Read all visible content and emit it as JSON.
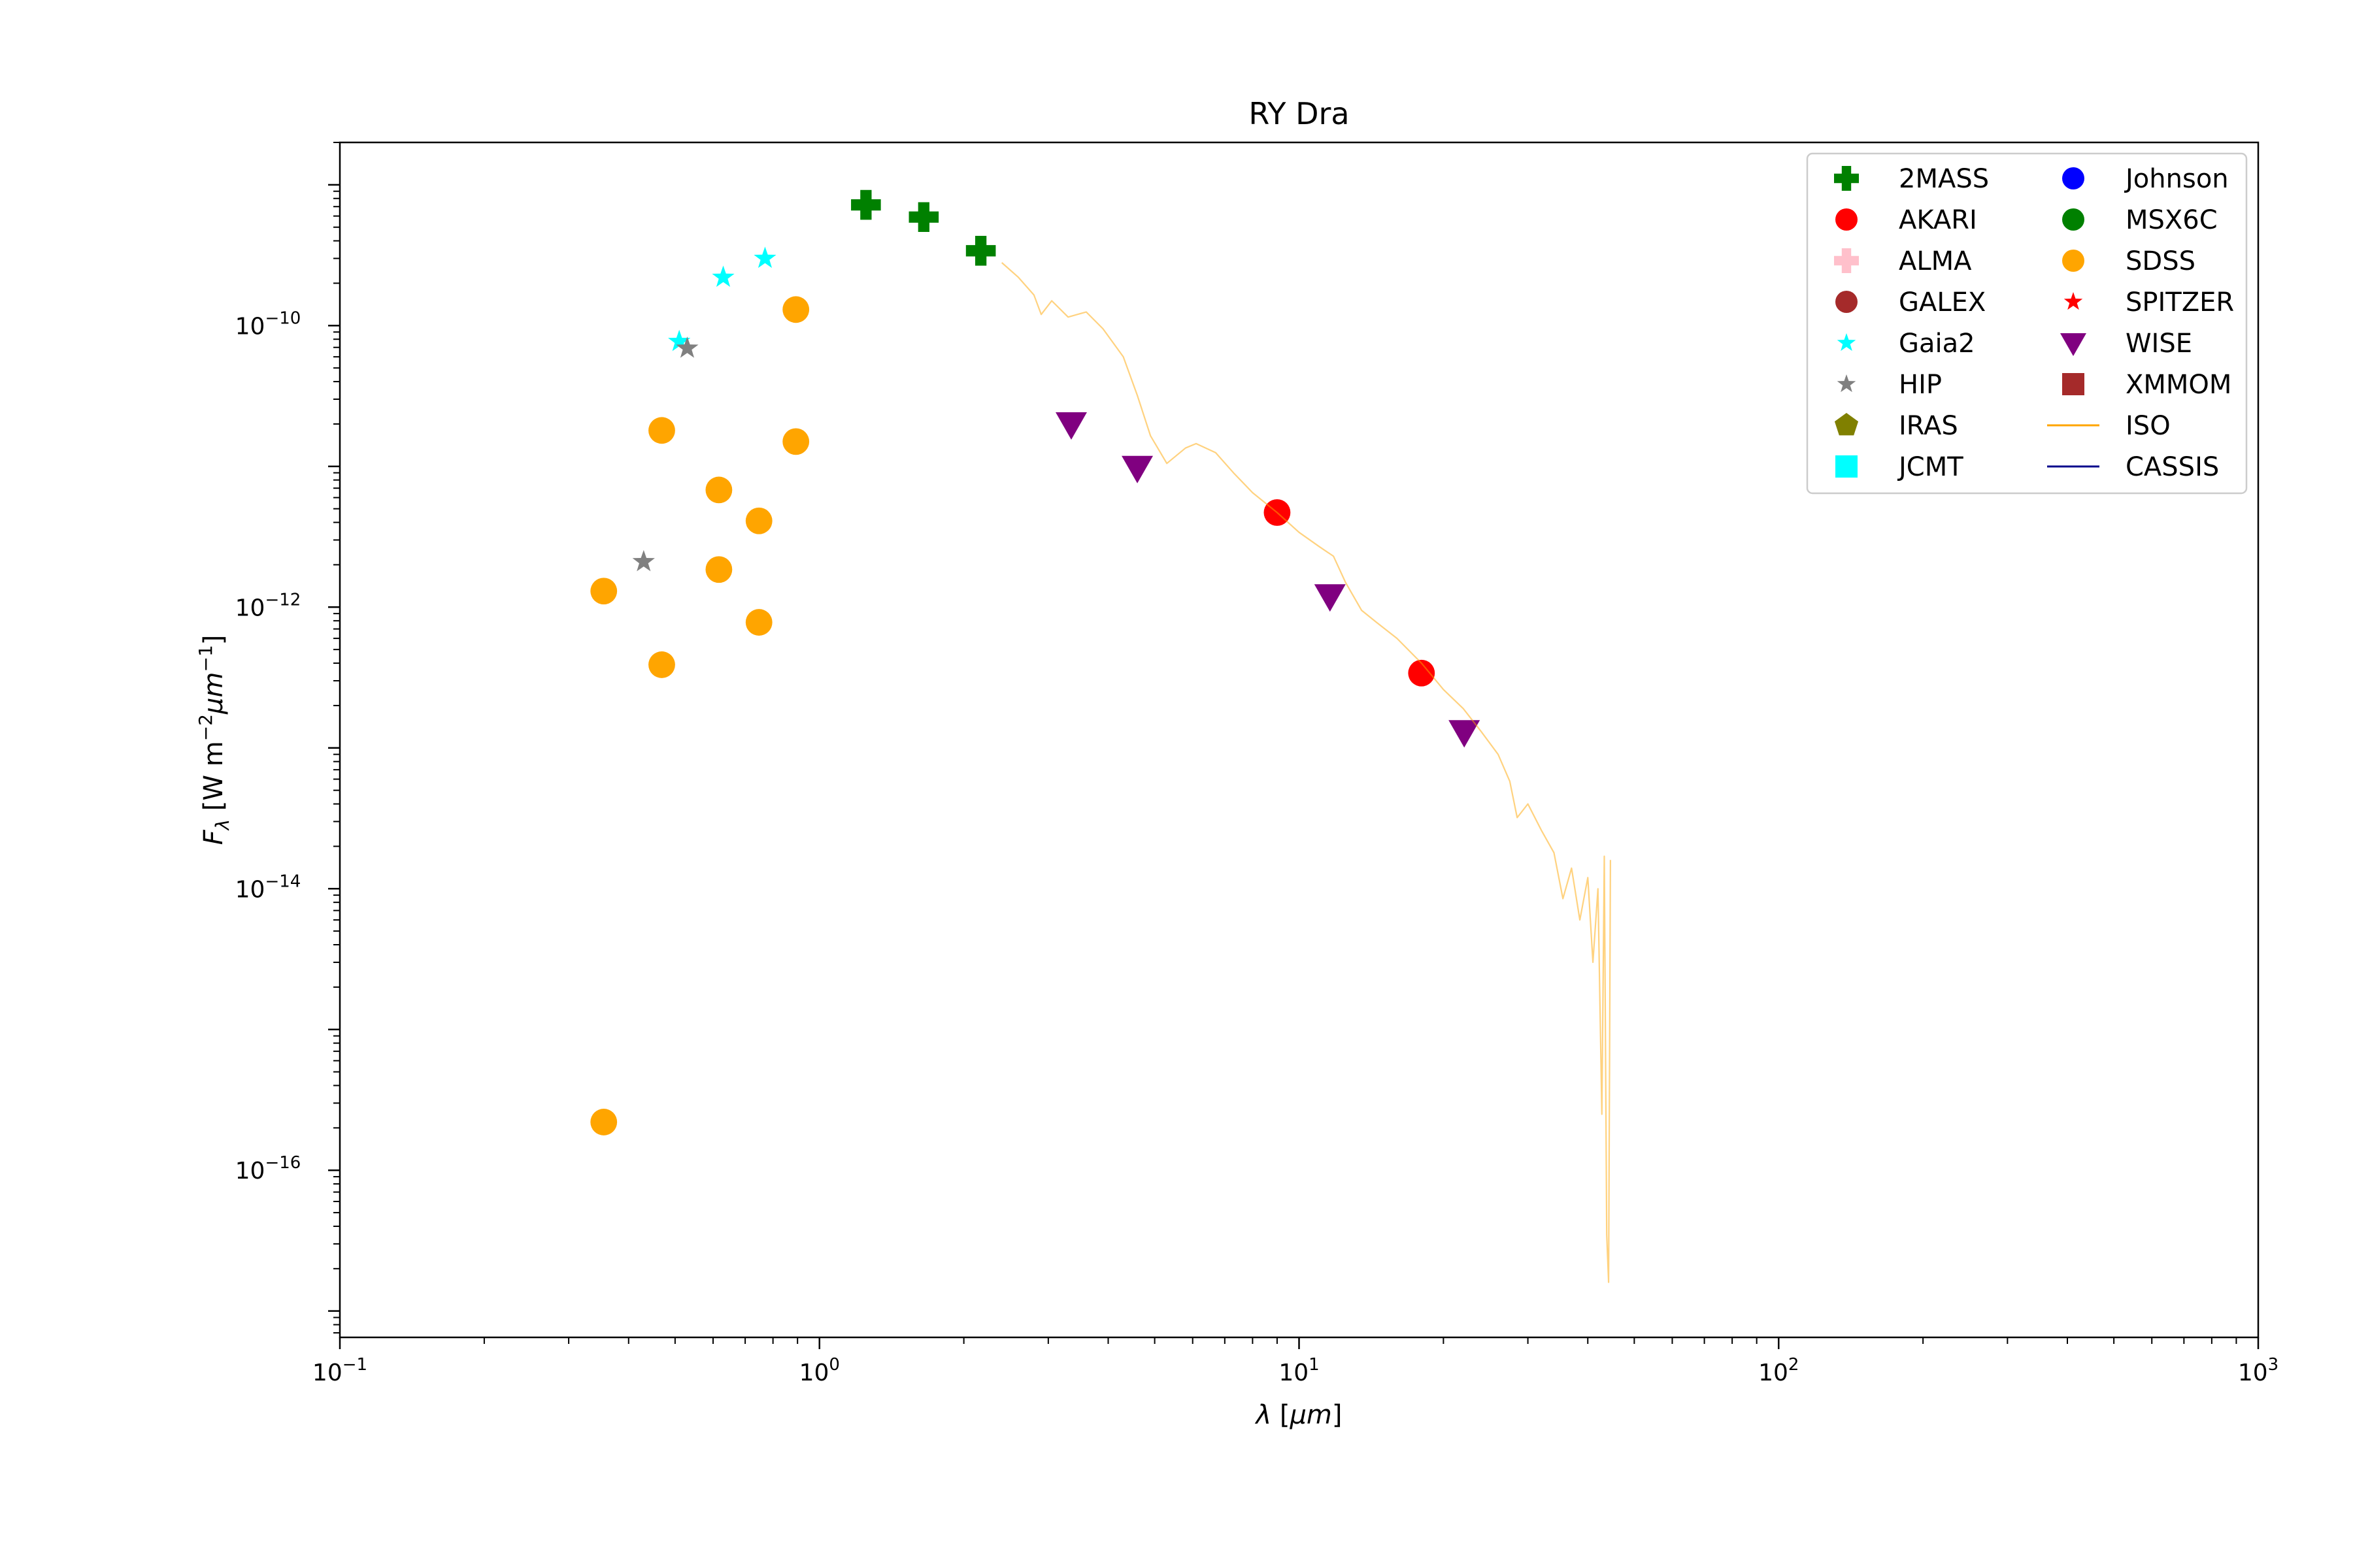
{
  "chart_data": {
    "type": "scatter",
    "title": "RY Dra",
    "xlabel": "λ [μm]",
    "ylabel": "F_λ [W m^-2 μm^-1]",
    "xscale": "log",
    "yscale": "log",
    "xlim": [
      0.1,
      1000
    ],
    "ylim": [
      6.5e-18,
      2e-09
    ],
    "x_ticks": [
      {
        "value": 0.1,
        "base": "10",
        "exp": "−1"
      },
      {
        "value": 1,
        "base": "10",
        "exp": "0"
      },
      {
        "value": 10,
        "base": "10",
        "exp": "1"
      },
      {
        "value": 100,
        "base": "10",
        "exp": "2"
      },
      {
        "value": 1000,
        "base": "10",
        "exp": "3"
      }
    ],
    "y_ticks": [
      {
        "value": 1e-10,
        "base": "10",
        "exp": "−10"
      },
      {
        "value": 1e-12,
        "base": "10",
        "exp": "−12"
      },
      {
        "value": 1e-14,
        "base": "10",
        "exp": "−14"
      },
      {
        "value": 1e-16,
        "base": "10",
        "exp": "−16"
      }
    ],
    "legend_location": "top-right",
    "series": [
      {
        "name": "2MASS",
        "marker": "plus",
        "color": "#008000",
        "points": [
          [
            1.25,
            7.2e-10
          ],
          [
            1.65,
            5.9e-10
          ],
          [
            2.17,
            3.4e-10
          ]
        ]
      },
      {
        "name": "AKARI",
        "marker": "circle",
        "color": "#ff0000",
        "points": [
          [
            9.0,
            4.7e-12
          ],
          [
            18.0,
            3.4e-13
          ]
        ]
      },
      {
        "name": "ALMA",
        "marker": "plus",
        "color": "#ffc0cb",
        "points": []
      },
      {
        "name": "GALEX",
        "marker": "circle",
        "color": "#a52a2a",
        "points": []
      },
      {
        "name": "Gaia2",
        "marker": "star",
        "color": "#00ffff",
        "points": [
          [
            0.51,
            7.7e-11
          ],
          [
            0.63,
            2.2e-10
          ],
          [
            0.77,
            3e-10
          ]
        ]
      },
      {
        "name": "HIP",
        "marker": "star",
        "color": "#808080",
        "points": [
          [
            0.53,
            6.9e-11
          ],
          [
            0.43,
            2.1e-12
          ]
        ]
      },
      {
        "name": "IRAS",
        "marker": "pentagon",
        "color": "#808000",
        "points": []
      },
      {
        "name": "JCMT",
        "marker": "square",
        "color": "#00ffff",
        "points": []
      },
      {
        "name": "Johnson",
        "marker": "circle",
        "color": "#0000ff",
        "points": []
      },
      {
        "name": "MSX6C",
        "marker": "circle",
        "color": "#008000",
        "points": []
      },
      {
        "name": "SDSS",
        "marker": "circle",
        "color": "#ffa500",
        "points": [
          [
            0.355,
            1.3e-12
          ],
          [
            0.355,
            2.2e-16
          ],
          [
            0.469,
            1.8e-11
          ],
          [
            0.469,
            3.9e-13
          ],
          [
            0.617,
            6.8e-12
          ],
          [
            0.617,
            1.85e-12
          ],
          [
            0.748,
            4.1e-12
          ],
          [
            0.748,
            7.8e-13
          ],
          [
            0.893,
            1.3e-10
          ],
          [
            0.893,
            1.5e-11
          ]
        ]
      },
      {
        "name": "SPITZER",
        "marker": "star",
        "color": "#ff0000",
        "points": []
      },
      {
        "name": "WISE",
        "marker": "triangle-down",
        "color": "#800080",
        "points": [
          [
            3.35,
            2e-11
          ],
          [
            4.6,
            9.8e-12
          ],
          [
            11.6,
            1.2e-12
          ],
          [
            22.1,
            1.3e-13
          ]
        ]
      },
      {
        "name": "XMMOM",
        "marker": "square",
        "color": "#a52a2a",
        "points": []
      },
      {
        "name": "ISO",
        "marker": "line",
        "color": "#ffa500",
        "points": [
          [
            2.4,
            2.8e-10
          ],
          [
            2.6,
            2.2e-10
          ],
          [
            2.8,
            1.65e-10
          ],
          [
            2.9,
            1.2e-10
          ],
          [
            3.05,
            1.5e-10
          ],
          [
            3.3,
            1.15e-10
          ],
          [
            3.6,
            1.25e-10
          ],
          [
            3.9,
            9.5e-11
          ],
          [
            4.3,
            6e-11
          ],
          [
            4.6,
            3.2e-11
          ],
          [
            4.9,
            1.65e-11
          ],
          [
            5.3,
            1.05e-11
          ],
          [
            5.8,
            1.35e-11
          ],
          [
            6.1,
            1.45e-11
          ],
          [
            6.7,
            1.25e-11
          ],
          [
            7.3,
            9e-12
          ],
          [
            8.0,
            6.5e-12
          ],
          [
            9.0,
            4.7e-12
          ],
          [
            10.0,
            3.4e-12
          ],
          [
            11.0,
            2.7e-12
          ],
          [
            11.8,
            2.3e-12
          ],
          [
            12.5,
            1.5e-12
          ],
          [
            13.5,
            9.5e-13
          ],
          [
            14.5,
            7.8e-13
          ],
          [
            16.0,
            6e-13
          ],
          [
            18.0,
            4e-13
          ],
          [
            20.0,
            2.6e-13
          ],
          [
            22.0,
            1.9e-13
          ],
          [
            24.0,
            1.3e-13
          ],
          [
            26.0,
            9e-14
          ],
          [
            27.5,
            5.8e-14
          ],
          [
            28.5,
            3.2e-14
          ],
          [
            30.0,
            4e-14
          ],
          [
            32.0,
            2.6e-14
          ],
          [
            34.0,
            1.8e-14
          ],
          [
            35.5,
            8.5e-15
          ],
          [
            37.0,
            1.4e-14
          ],
          [
            38.5,
            6e-15
          ],
          [
            40.0,
            1.2e-14
          ],
          [
            41.0,
            3e-15
          ],
          [
            42.0,
            1e-14
          ],
          [
            42.8,
            2.5e-16
          ],
          [
            43.3,
            1.7e-14
          ],
          [
            43.8,
            3.5e-17
          ],
          [
            44.2,
            1.6e-17
          ],
          [
            44.6,
            1.6e-14
          ]
        ]
      },
      {
        "name": "CASSIS",
        "marker": "line",
        "color": "#00008b",
        "points": []
      }
    ]
  }
}
